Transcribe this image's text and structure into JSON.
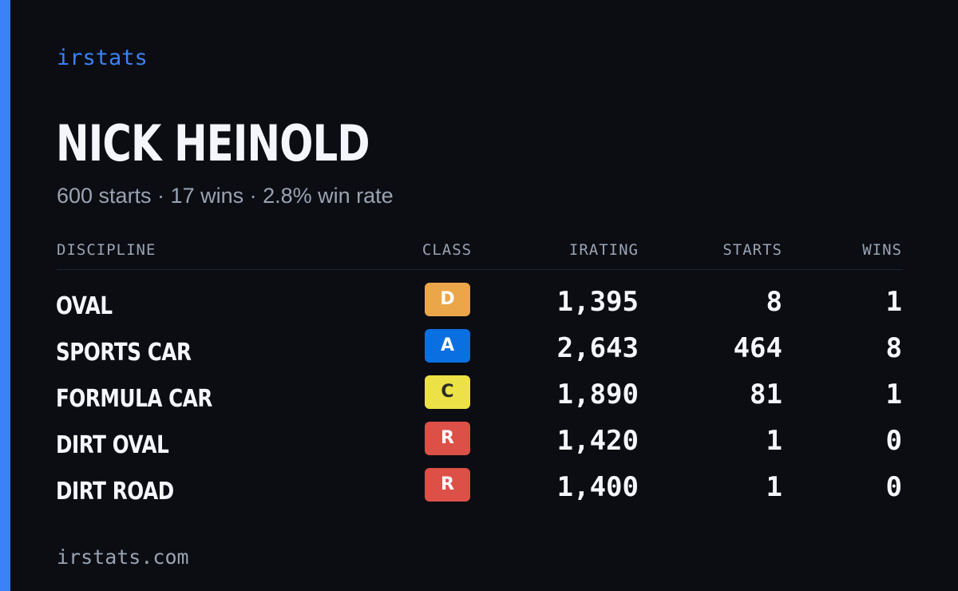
{
  "brand": "irstats",
  "driver": {
    "name": "NICK HEINOLD",
    "summary": "600 starts · 17 wins · 2.8% win rate"
  },
  "table": {
    "headers": {
      "discipline": "DISCIPLINE",
      "class": "CLASS",
      "irating": "IRATING",
      "starts": "STARTS",
      "wins": "WINS"
    },
    "rows": [
      {
        "discipline": "OVAL",
        "class": "D",
        "irating": "1,395",
        "starts": "8",
        "wins": "1"
      },
      {
        "discipline": "SPORTS CAR",
        "class": "A",
        "irating": "2,643",
        "starts": "464",
        "wins": "8"
      },
      {
        "discipline": "FORMULA CAR",
        "class": "C",
        "irating": "1,890",
        "starts": "81",
        "wins": "1"
      },
      {
        "discipline": "DIRT OVAL",
        "class": "R",
        "irating": "1,420",
        "starts": "1",
        "wins": "0"
      },
      {
        "discipline": "DIRT ROAD",
        "class": "R",
        "irating": "1,400",
        "starts": "1",
        "wins": "0"
      }
    ]
  },
  "class_colors": {
    "D": {
      "bg": "#eba64a",
      "fg": "#ffffff"
    },
    "A": {
      "bg": "#0a6fe0",
      "fg": "#ffffff"
    },
    "C": {
      "bg": "#ece146",
      "fg": "#2a2a2a"
    },
    "R": {
      "bg": "#dc5048",
      "fg": "#ffffff"
    }
  },
  "colors": {
    "accent": "#3b82f6",
    "background": "#0b0d13",
    "muted_text": "#9aa3b2"
  },
  "footer": "irstats.com"
}
